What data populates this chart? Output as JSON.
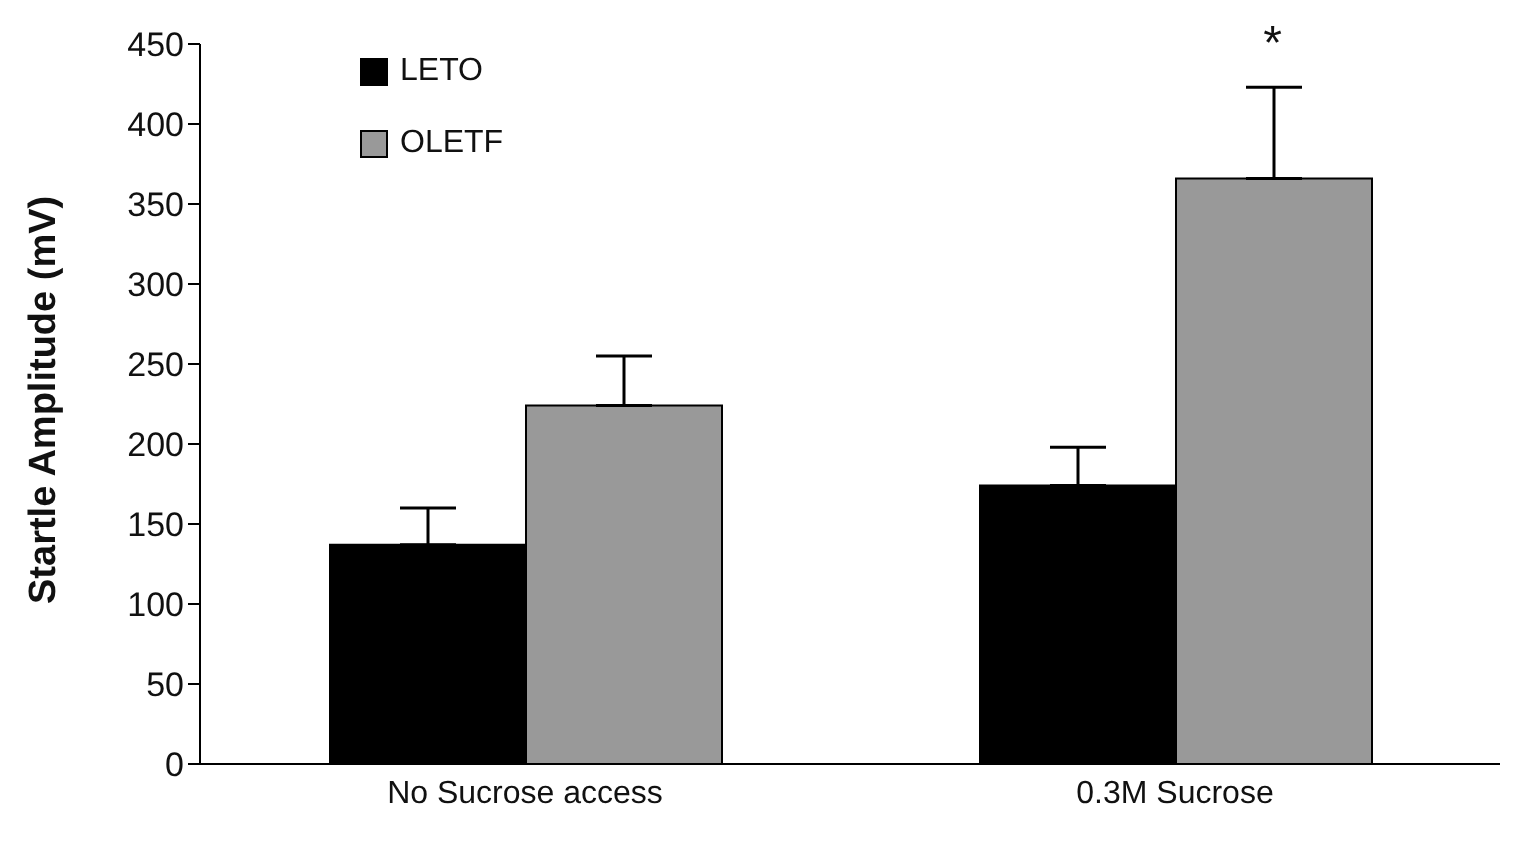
{
  "chart_data": {
    "type": "bar",
    "ylabel": "Startle Amplitude (mV)",
    "categories": [
      "No Sucrose access",
      "0.3M Sucrose"
    ],
    "series": [
      {
        "name": "LETO",
        "color": "#000000",
        "values": [
          137,
          174
        ],
        "errors": [
          [
            137,
            160
          ],
          [
            174,
            198
          ]
        ]
      },
      {
        "name": "OLETF",
        "color": "#999999",
        "values": [
          224,
          366
        ],
        "errors": [
          [
            224,
            255
          ],
          [
            366,
            423
          ]
        ]
      }
    ],
    "ylim": [
      0,
      450
    ],
    "yticks": [
      0,
      50,
      100,
      150,
      200,
      250,
      300,
      350,
      400,
      450
    ],
    "grid": false,
    "legend": "top left",
    "annotations": [
      "*"
    ]
  }
}
